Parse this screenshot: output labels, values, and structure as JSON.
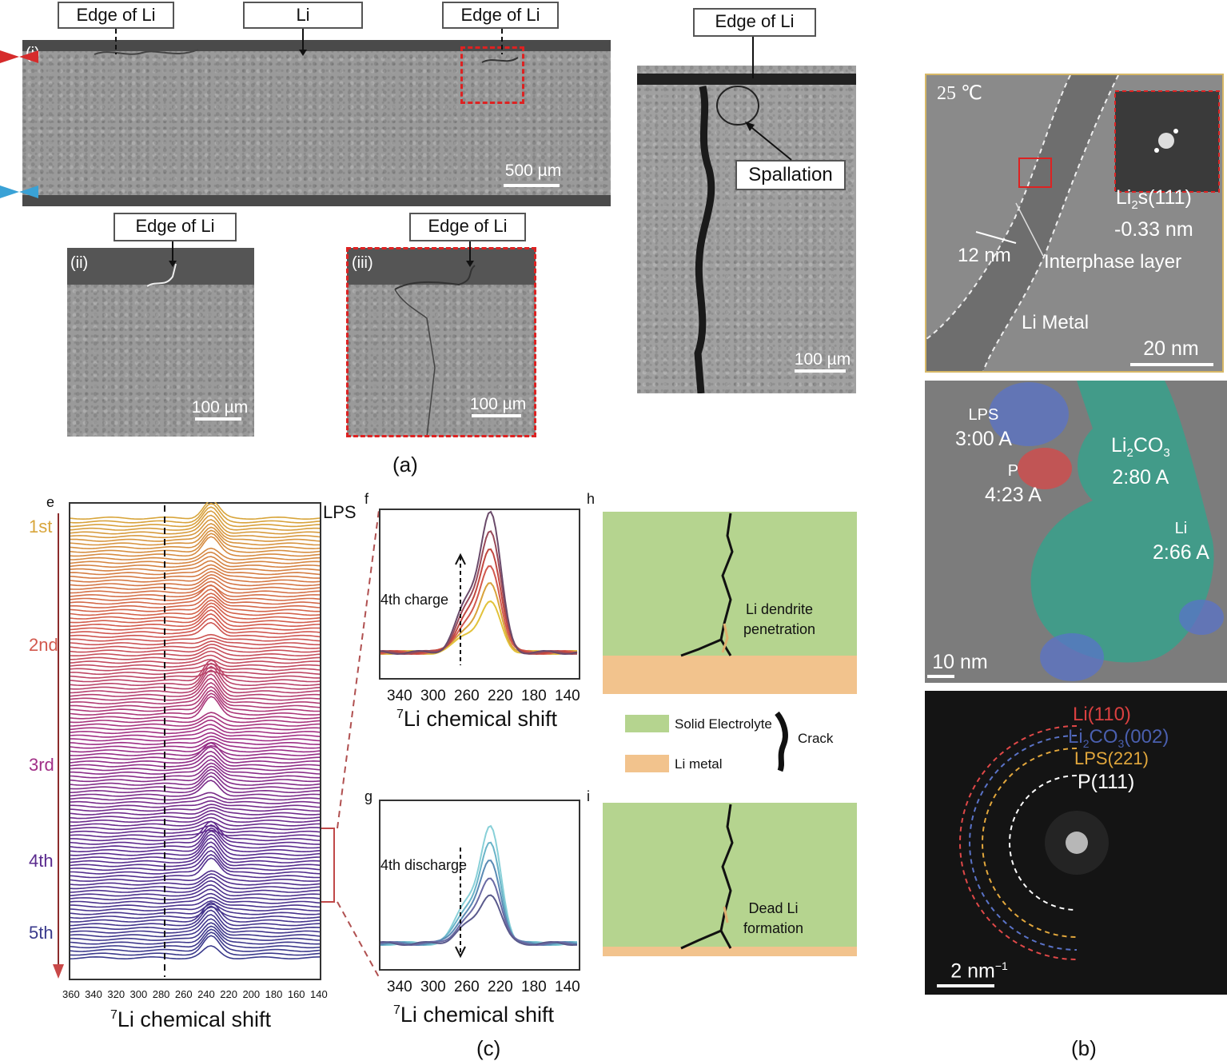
{
  "panel_a": {
    "caption": "(a)",
    "top": {
      "roman": "(i)",
      "callouts": [
        "Edge of Li",
        "Li",
        "Edge of Li"
      ],
      "scale": "500 µm"
    },
    "left": {
      "roman": "(ii)",
      "callout": "Edge of Li",
      "scale": "100 µm"
    },
    "mid": {
      "roman": "(iii)",
      "callout": "Edge of Li",
      "scale": "100 µm"
    },
    "right": {
      "callout": "Edge of Li",
      "spallation": "Spallation",
      "scale": "100 µm"
    }
  },
  "panel_b": {
    "caption": "(b)",
    "tem": {
      "temp": "25 ℃",
      "fft_label_a": "Li",
      "fft_sub": "2",
      "fft_label_b": "s(111)",
      "fft_spacing": "-0.33 nm",
      "thickness": "12 nm",
      "interphase": "Interphase layer",
      "metal": "Li Metal",
      "scale": "20 nm"
    },
    "hr": {
      "lps_name": "LPS",
      "lps_d": "3:00 A",
      "li2co3_a": "Li",
      "li2co3_sub": "2",
      "li2co3_b": "CO",
      "li2co3_sub2": "3",
      "li2co3_d": "2:80 A",
      "p_name": "P",
      "p_d": "4:23 A",
      "li_name": "Li",
      "li_d": "2:66 A",
      "scale": "10 nm"
    },
    "saed": {
      "ring1": "Li(110)",
      "ring2a": "Li",
      "ring2sub": "2",
      "ring2b": "CO",
      "ring2sub2": "3",
      "ring2c": "(002)",
      "ring3": "LPS(221)",
      "ring4": "P(111)",
      "scale": "2 nm",
      "scale_sup": "−1"
    },
    "colors": {
      "lps": "#5a73c8",
      "p": "#d24b4b",
      "li2co3": "#2fa58e",
      "li": "#2aa088"
    }
  },
  "panel_c": {
    "caption": "(c)",
    "letters": {
      "e": "e",
      "f": "f",
      "g": "g",
      "h": "h",
      "i": "i"
    },
    "waterfall": {
      "lps": "LPS",
      "cycles": [
        "1st",
        "2nd",
        "3rd",
        "4th",
        "5th"
      ],
      "cycle_colors": [
        "#d8a53b",
        "#d2584d",
        "#a12f86",
        "#5a2a8e",
        "#3a3a8c"
      ],
      "xticks": [
        "360",
        "340",
        "320",
        "300",
        "280",
        "260",
        "240",
        "220",
        "200",
        "180",
        "160",
        "140"
      ],
      "xlabel_sup": "7",
      "xlabel": "Li chemical shift"
    },
    "charge": {
      "label": "4th charge",
      "xticks": [
        "340",
        "300",
        "260",
        "220",
        "180",
        "140"
      ],
      "xlabel_sup": "7",
      "xlabel": "Li chemical shift"
    },
    "discharge": {
      "label": "4th discharge",
      "xticks": [
        "340",
        "300",
        "260",
        "220",
        "180",
        "140"
      ],
      "xlabel_sup": "7",
      "xlabel": "Li chemical shift"
    },
    "schematic": {
      "top_text1": "Li dendrite",
      "top_text2": "penetration",
      "bot_text1": "Dead Li",
      "bot_text2": "formation",
      "legend_se": "Solid Electrolyte",
      "legend_li": "Li metal",
      "legend_crack": "Crack",
      "green": "#b5d48f",
      "orange": "#f2c38d"
    }
  }
}
